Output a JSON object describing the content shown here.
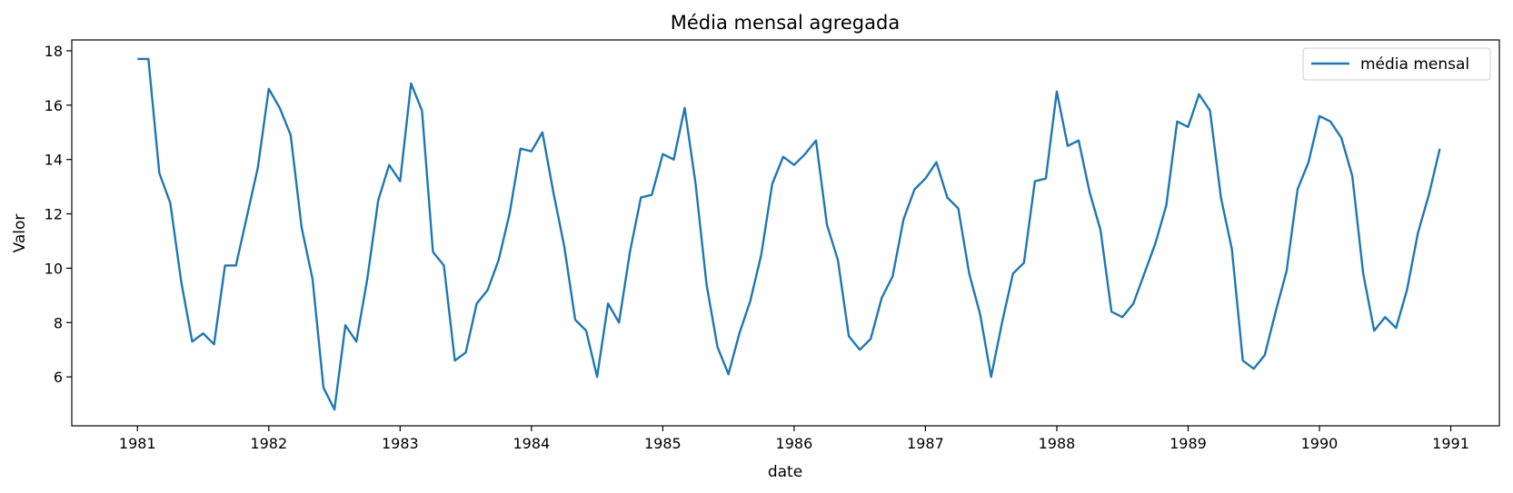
{
  "chart_data": {
    "type": "line",
    "title": "Média mensal agregada",
    "xlabel": "date",
    "ylabel": "Valor",
    "xlim": [
      1980.5,
      1991.37
    ],
    "ylim": [
      4.2,
      18.4
    ],
    "x_ticks": [
      1981,
      1982,
      1983,
      1984,
      1985,
      1986,
      1987,
      1988,
      1989,
      1990,
      1991
    ],
    "x_tick_labels": [
      "1981",
      "1982",
      "1983",
      "1984",
      "1985",
      "1986",
      "1987",
      "1988",
      "1989",
      "1990",
      "1991"
    ],
    "y_ticks": [
      6,
      8,
      10,
      12,
      14,
      16,
      18
    ],
    "y_tick_labels": [
      "6",
      "8",
      "10",
      "12",
      "14",
      "16",
      "18"
    ],
    "grid": false,
    "legend_position": "top-right",
    "x_start": "1981-01",
    "x_frequency": "monthly",
    "series": [
      {
        "name": "média mensal",
        "color": "#1f77b4",
        "values": [
          17.7,
          17.7,
          13.5,
          12.4,
          9.5,
          7.3,
          7.6,
          7.2,
          10.1,
          10.1,
          11.9,
          13.7,
          16.6,
          15.9,
          14.9,
          11.5,
          9.6,
          5.6,
          4.8,
          7.9,
          7.3,
          9.6,
          12.5,
          13.8,
          13.2,
          16.8,
          15.8,
          10.6,
          10.1,
          6.6,
          6.9,
          8.7,
          9.2,
          10.3,
          12.0,
          14.4,
          14.3,
          15.0,
          12.8,
          10.8,
          8.1,
          7.7,
          6.0,
          8.7,
          8.0,
          10.6,
          12.6,
          12.7,
          14.2,
          14.0,
          15.9,
          13.1,
          9.4,
          7.1,
          6.1,
          7.6,
          8.8,
          10.5,
          13.1,
          14.1,
          13.8,
          14.2,
          14.7,
          11.6,
          10.3,
          7.5,
          7.0,
          7.4,
          8.9,
          9.7,
          11.8,
          12.9,
          13.3,
          13.9,
          12.6,
          12.2,
          9.8,
          8.3,
          6.0,
          8.0,
          9.8,
          10.2,
          13.2,
          13.3,
          16.5,
          14.5,
          14.7,
          12.8,
          11.4,
          8.4,
          8.2,
          8.7,
          9.8,
          10.9,
          12.3,
          15.4,
          15.2,
          16.4,
          15.8,
          12.6,
          10.7,
          6.6,
          6.3,
          6.8,
          8.4,
          9.9,
          12.9,
          13.9,
          15.6,
          15.4,
          14.8,
          13.4,
          9.8,
          7.7,
          8.2,
          7.8,
          9.2,
          11.3,
          12.7,
          14.4
        ]
      }
    ]
  }
}
